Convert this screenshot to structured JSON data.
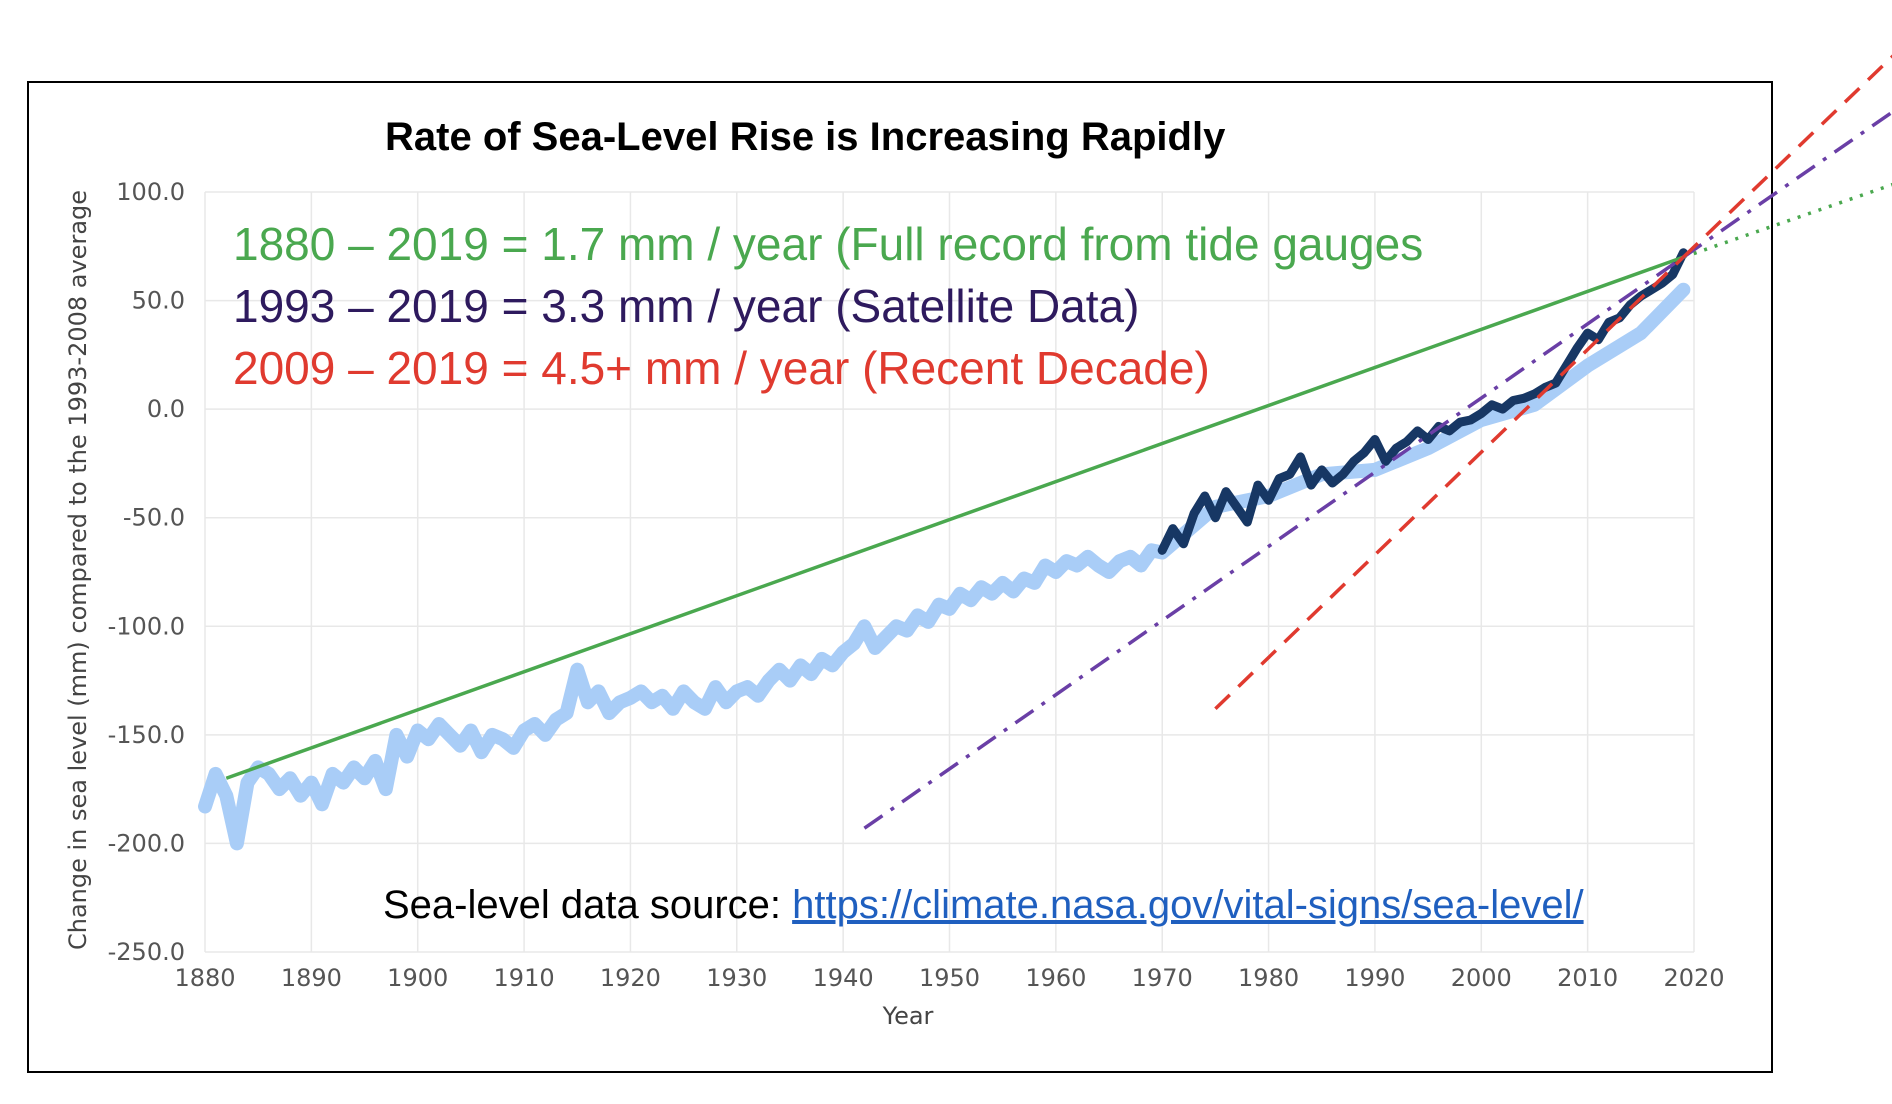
{
  "chart_data": {
    "type": "line",
    "title": "Rate of Sea-Level Rise is Increasing Rapidly",
    "xlabel": "Year",
    "ylabel": "Change in sea level (mm) compared to the 1993-2008 average",
    "xlim": [
      1880,
      2020
    ],
    "ylim": [
      -250,
      100
    ],
    "x_ticks": [
      "1880",
      "1890",
      "1900",
      "1910",
      "1920",
      "1930",
      "1940",
      "1950",
      "1960",
      "1970",
      "1980",
      "1990",
      "2000",
      "2010",
      "2020"
    ],
    "y_ticks": [
      "100.0",
      "50.0",
      "0.0",
      "-50.0",
      "-100.0",
      "-150.0",
      "-200.0",
      "-250.0"
    ],
    "grid": true,
    "annotations": [
      {
        "text": "1880 – 2019 = 1.7 mm / year (Full record from tide gauges",
        "color": "#4aa84f"
      },
      {
        "text": "1993 – 2019 = 3.3 mm / year (Satellite Data)",
        "color": "#2e1a5e"
      },
      {
        "text": "2009 – 2019 = 4.5+ mm / year (Recent Decade)",
        "color": "#e03a2f"
      }
    ],
    "source_label": "Sea-level data source: ",
    "source_link": "https://climate.nasa.gov/vital-signs/sea-level/",
    "series": [
      {
        "style": "light-blue band",
        "color": "#a9cdf7",
        "x": [
          1880,
          1881,
          1882,
          1883,
          1884,
          1885,
          1886,
          1887,
          1888,
          1889,
          1890,
          1891,
          1892,
          1893,
          1894,
          1895,
          1896,
          1897,
          1898,
          1899,
          1900,
          1901,
          1902,
          1903,
          1904,
          1905,
          1906,
          1907,
          1908,
          1909,
          1910,
          1911,
          1912,
          1913,
          1914,
          1915,
          1916,
          1917,
          1918,
          1919,
          1920,
          1921,
          1922,
          1923,
          1924,
          1925,
          1926,
          1927,
          1928,
          1929,
          1930,
          1931,
          1932,
          1933,
          1934,
          1935,
          1936,
          1937,
          1938,
          1939,
          1940,
          1941,
          1942,
          1943,
          1944,
          1945,
          1946,
          1947,
          1948,
          1949,
          1950,
          1951,
          1952,
          1953,
          1954,
          1955,
          1956,
          1957,
          1958,
          1959,
          1960,
          1961,
          1962,
          1963,
          1964,
          1965,
          1966,
          1967,
          1968,
          1969,
          1970,
          1975,
          1980,
          1985,
          1990,
          1995,
          2000,
          2005,
          2010,
          2015,
          2019
        ],
        "y": [
          -183,
          -168,
          -178,
          -200,
          -172,
          -165,
          -168,
          -175,
          -170,
          -178,
          -172,
          -182,
          -168,
          -172,
          -165,
          -170,
          -162,
          -175,
          -150,
          -160,
          -148,
          -152,
          -145,
          -150,
          -155,
          -148,
          -158,
          -150,
          -152,
          -156,
          -148,
          -145,
          -150,
          -143,
          -140,
          -120,
          -135,
          -130,
          -140,
          -135,
          -133,
          -130,
          -135,
          -132,
          -138,
          -130,
          -135,
          -138,
          -128,
          -135,
          -130,
          -128,
          -132,
          -125,
          -120,
          -125,
          -118,
          -122,
          -115,
          -118,
          -112,
          -108,
          -100,
          -110,
          -105,
          -100,
          -102,
          -95,
          -98,
          -90,
          -92,
          -85,
          -88,
          -82,
          -85,
          -80,
          -84,
          -78,
          -80,
          -72,
          -75,
          -70,
          -72,
          -68,
          -72,
          -75,
          -70,
          -68,
          -72,
          -65,
          -66,
          -45,
          -40,
          -30,
          -28,
          -18,
          -5,
          2,
          20,
          35,
          55
        ]
      },
      {
        "style": "dark-blue satellite line",
        "color": "#173764",
        "x": [
          1970,
          1971,
          1972,
          1973,
          1974,
          1975,
          1976,
          1977,
          1978,
          1979,
          1980,
          1981,
          1982,
          1983,
          1984,
          1985,
          1986,
          1987,
          1988,
          1989,
          1990,
          1991,
          1992,
          1993,
          1994,
          1995,
          1996,
          1997,
          1998,
          1999,
          2000,
          2001,
          2002,
          2003,
          2004,
          2005,
          2006,
          2007,
          2008,
          2009,
          2010,
          2011,
          2012,
          2013,
          2014,
          2015,
          2016,
          2017,
          2018,
          2019
        ],
        "y": [
          -65,
          -55,
          -62,
          -48,
          -40,
          -50,
          -38,
          -45,
          -52,
          -35,
          -42,
          -32,
          -30,
          -22,
          -35,
          -28,
          -34,
          -30,
          -24,
          -20,
          -14,
          -24,
          -18,
          -15,
          -10,
          -14,
          -8,
          -10,
          -6,
          -5,
          -2,
          2,
          0,
          4,
          5,
          7,
          10,
          12,
          20,
          28,
          35,
          32,
          40,
          42,
          48,
          52,
          55,
          58,
          62,
          72
        ]
      },
      {
        "style": "trend 1880-2019 (solid green)",
        "color": "#4aa84f",
        "x": [
          1882,
          2019
        ],
        "y": [
          -170,
          70
        ]
      },
      {
        "style": "trend 1993-2019 (purple dash-dot)",
        "color": "#6a3fa6",
        "x": [
          1942,
          2019
        ],
        "y": [
          -193,
          70
        ]
      },
      {
        "style": "trend 2009-2019 (red dashed)",
        "color": "#e03a2f",
        "x": [
          1975,
          2019
        ],
        "y": [
          -138,
          70
        ]
      }
    ]
  }
}
